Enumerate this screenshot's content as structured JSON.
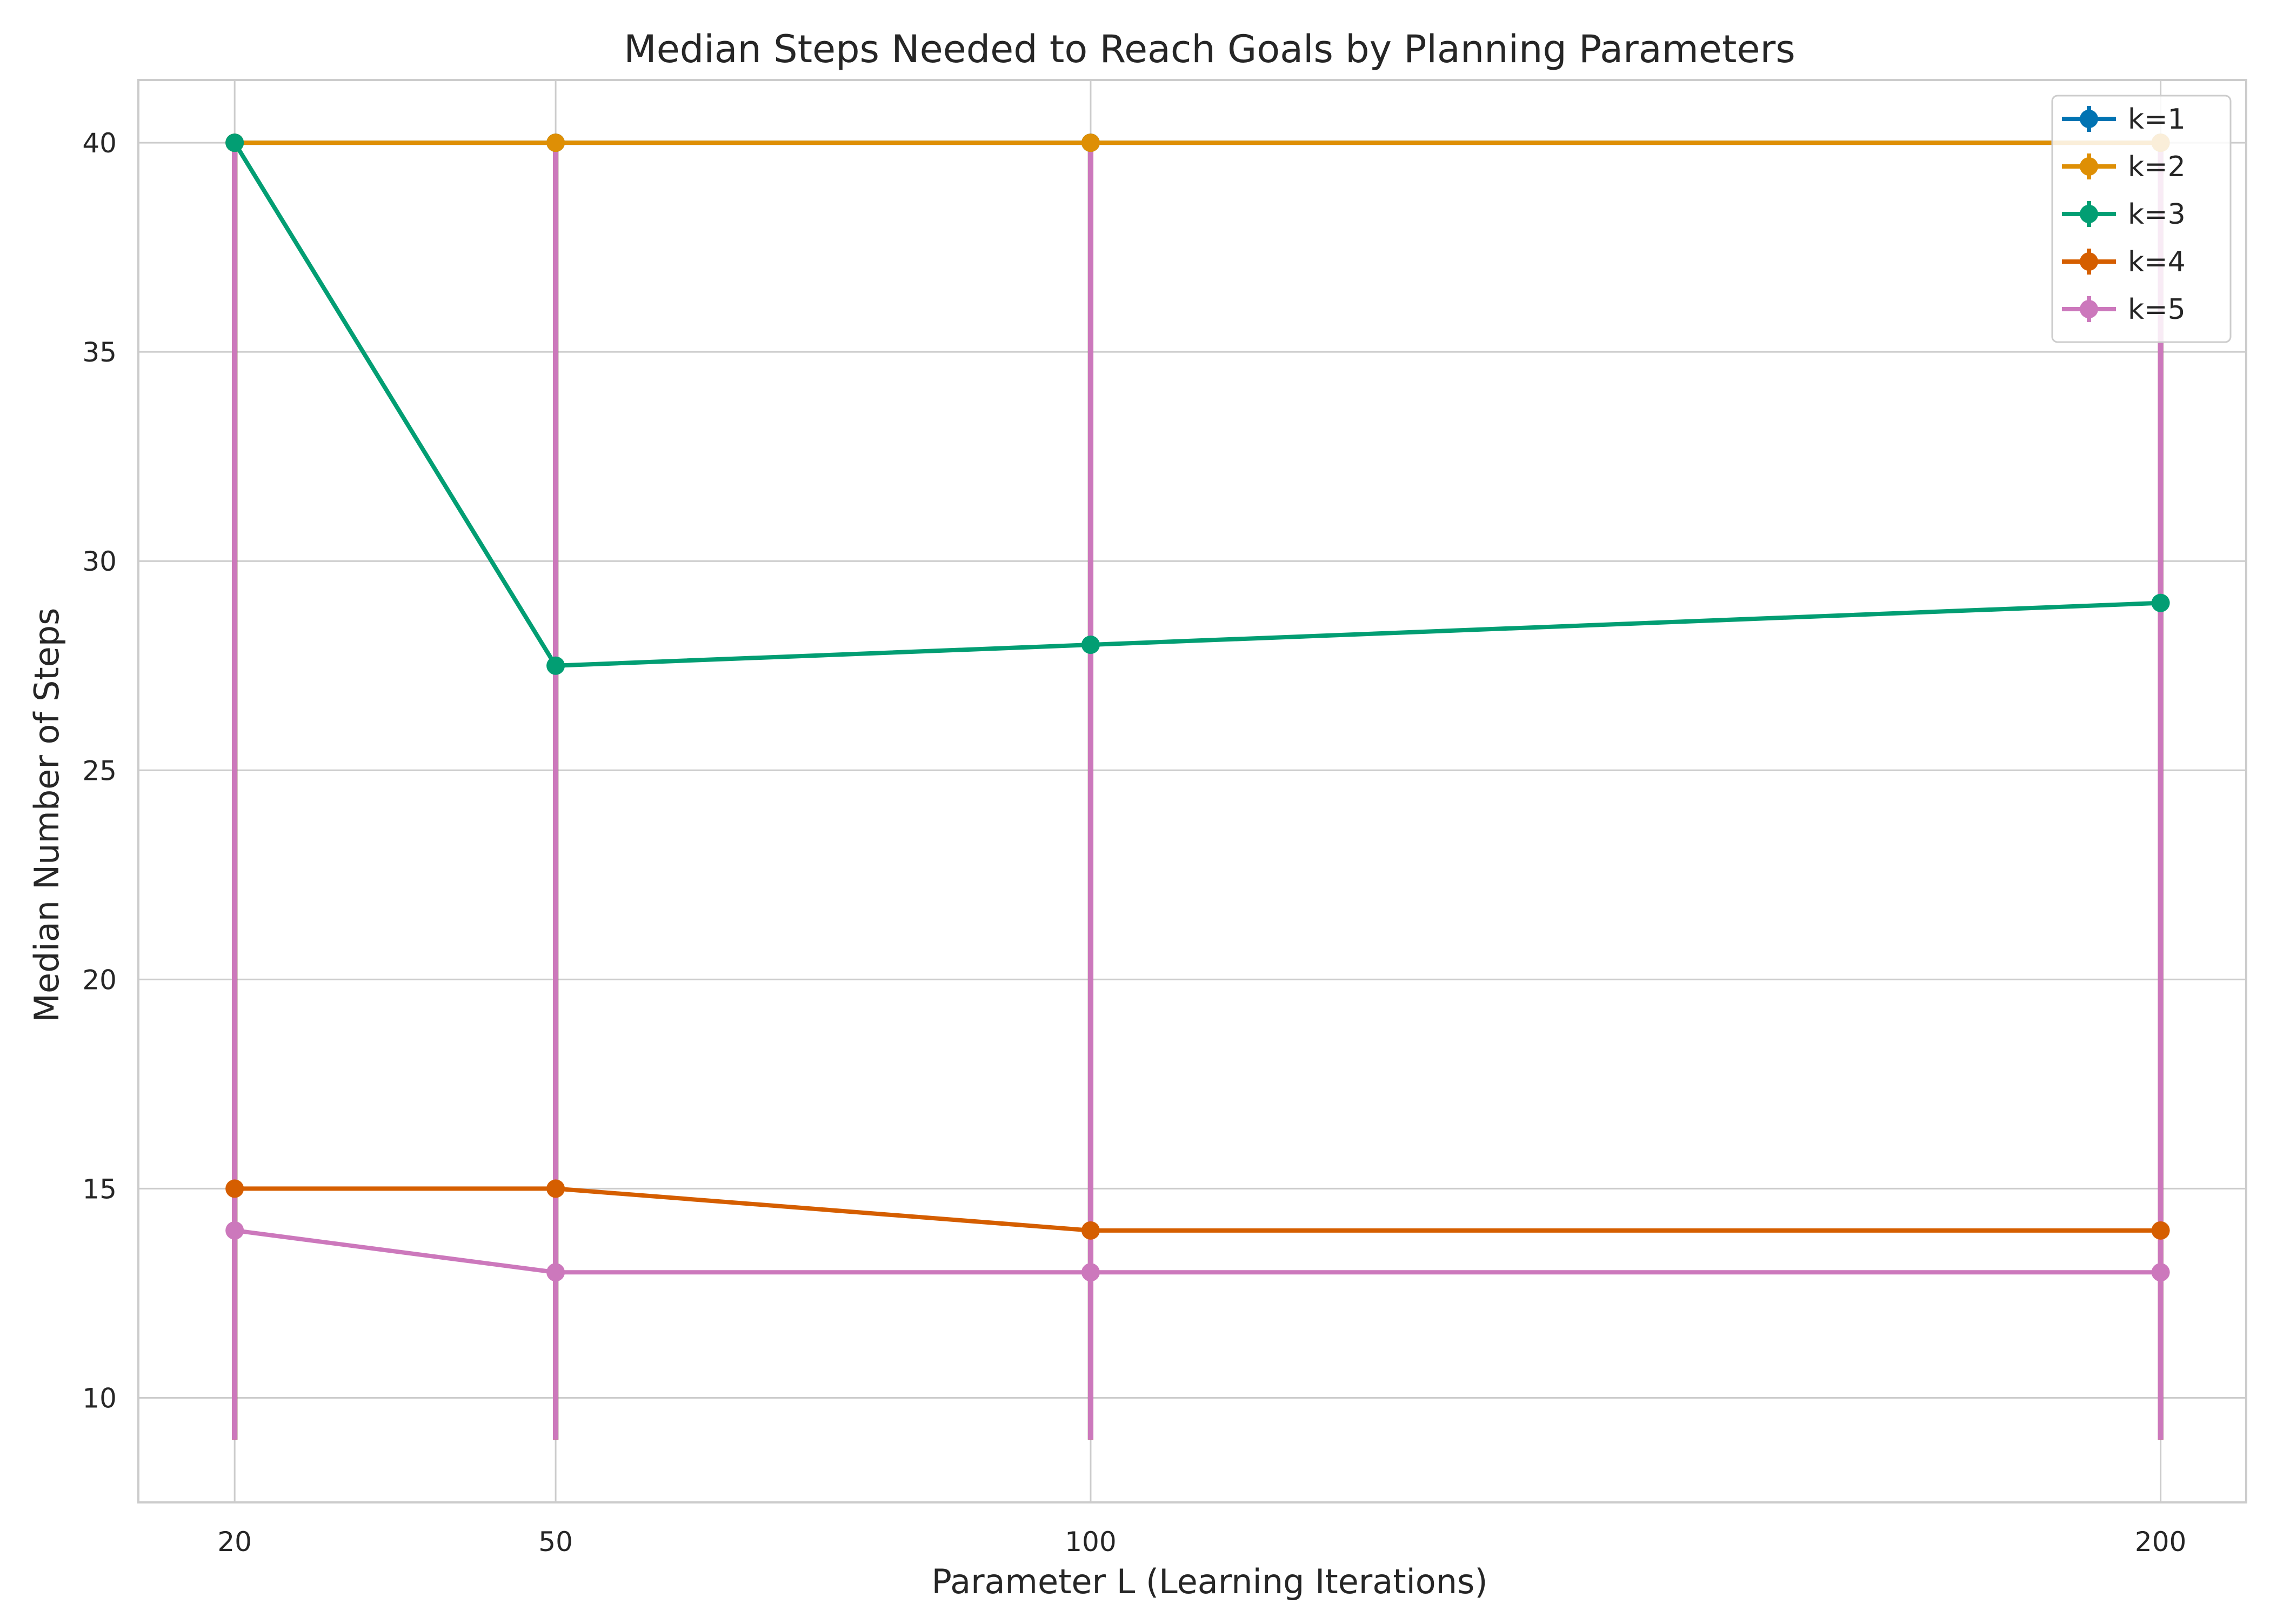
{
  "chart_data": {
    "type": "line",
    "title": "Median Steps Needed to Reach Goals by Planning Parameters",
    "xlabel": "Parameter L (Learning Iterations)",
    "ylabel": "Median Number of Steps",
    "x": [
      20,
      50,
      100,
      200
    ],
    "x_tick_labels": [
      "20",
      "50",
      "100",
      "200"
    ],
    "xlim": [
      11,
      208
    ],
    "ylim": [
      7.5,
      41.5
    ],
    "y_ticks": [
      10,
      15,
      20,
      25,
      30,
      35,
      40
    ],
    "grid": true,
    "legend_position": "top-right",
    "series": [
      {
        "name": "k=1",
        "color": "#0173b2",
        "values": [
          40,
          40,
          40,
          40
        ],
        "error_low": [
          9,
          9,
          9,
          9
        ],
        "error_high": [
          40,
          40,
          40,
          40
        ]
      },
      {
        "name": "k=2",
        "color": "#de8f05",
        "values": [
          40,
          40,
          40,
          40
        ],
        "error_low": [
          9,
          9,
          9,
          9
        ],
        "error_high": [
          40,
          40,
          40,
          40
        ]
      },
      {
        "name": "k=3",
        "color": "#029e73",
        "values": [
          40,
          27.5,
          28,
          29
        ],
        "error_low": [
          9,
          9,
          9,
          9
        ],
        "error_high": [
          40,
          40,
          40,
          40
        ]
      },
      {
        "name": "k=4",
        "color": "#d55e00",
        "values": [
          15,
          15,
          14,
          14
        ],
        "error_low": [
          9,
          9,
          9,
          9
        ],
        "error_high": [
          40,
          40,
          40,
          40
        ]
      },
      {
        "name": "k=5",
        "color": "#cc78bc",
        "values": [
          14,
          13,
          13,
          13
        ],
        "error_low": [
          9,
          9,
          9,
          9
        ],
        "error_high": [
          40,
          40,
          40,
          40
        ]
      }
    ]
  }
}
